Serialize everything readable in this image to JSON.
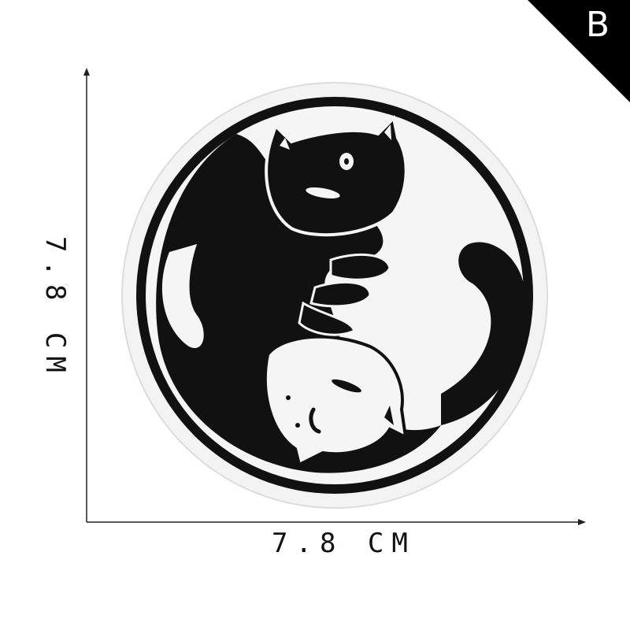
{
  "badge": {
    "letter": "B",
    "color": "#000000"
  },
  "dimensions": {
    "width_label": "7.8 CM",
    "height_label": "7.8 CM"
  },
  "patch": {
    "description_icon": "yin-yang-cats-patch-icon",
    "colors": {
      "dark": "#111111",
      "light": "#f5f5f5"
    }
  }
}
